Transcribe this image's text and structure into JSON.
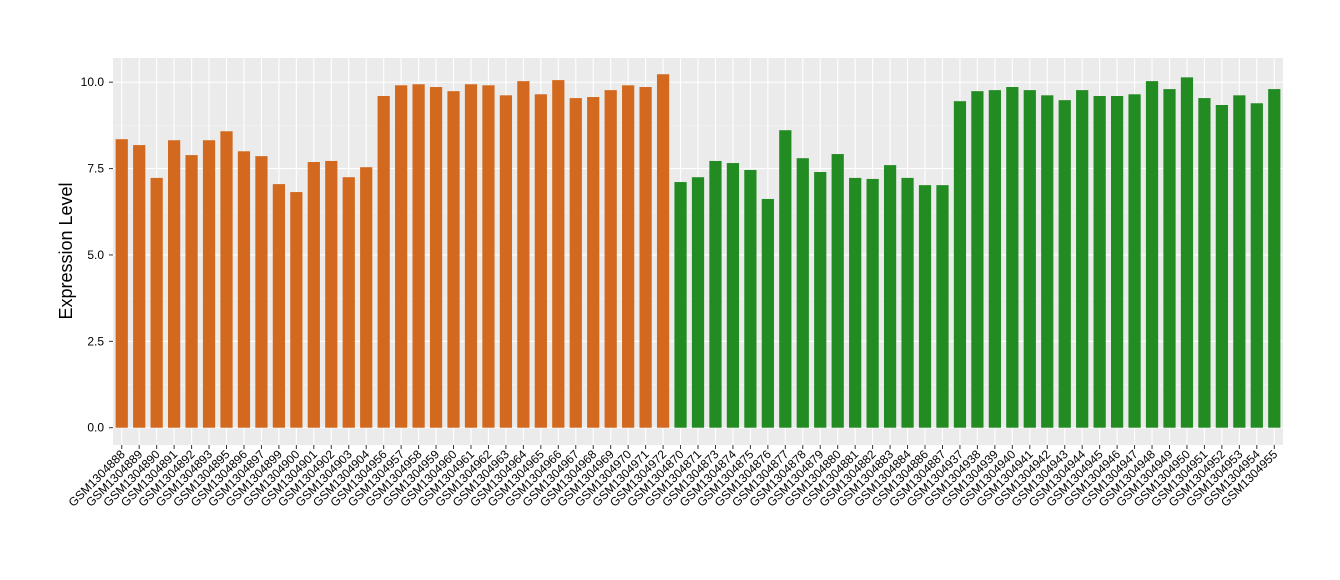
{
  "chart_data": {
    "type": "bar",
    "y_label": "Expression Level",
    "ylim": [
      -0.5,
      10.7
    ],
    "yticks": [
      {
        "value": 0,
        "label": "0.0"
      },
      2.5,
      {
        "value": 5,
        "label": "5.0"
      },
      7.5,
      {
        "value": 10,
        "label": "10.0"
      }
    ],
    "grid": true,
    "groups": [
      {
        "color": "#d2691e",
        "categories": [
          "GSM1304888",
          "GSM1304889",
          "GSM1304890",
          "GSM1304891",
          "GSM1304892",
          "GSM1304893",
          "GSM1304895",
          "GSM1304896",
          "GSM1304897",
          "GSM1304899",
          "GSM1304900",
          "GSM1304901",
          "GSM1304902",
          "GSM1304903",
          "GSM1304904",
          "GSM1304956",
          "GSM1304957",
          "GSM1304958",
          "GSM1304959",
          "GSM1304960",
          "GSM1304961",
          "GSM1304962",
          "GSM1304963",
          "GSM1304964",
          "GSM1304965",
          "GSM1304966",
          "GSM1304967",
          "GSM1304968",
          "GSM1304969",
          "GSM1304970",
          "GSM1304971",
          "GSM1304972"
        ],
        "values": [
          8.35,
          8.18,
          7.23,
          8.32,
          7.89,
          8.32,
          8.58,
          8.0,
          7.86,
          7.05,
          6.82,
          7.69,
          7.72,
          7.25,
          7.54,
          9.6,
          9.91,
          9.94,
          9.86,
          9.74,
          9.94,
          9.91,
          9.62,
          10.03,
          9.65,
          10.06,
          9.54,
          9.57,
          9.77,
          9.91,
          9.86,
          10.23
        ]
      },
      {
        "color": "#228b22",
        "categories": [
          "GSM1304870",
          "GSM1304871",
          "GSM1304873",
          "GSM1304874",
          "GSM1304875",
          "GSM1304876",
          "GSM1304877",
          "GSM1304878",
          "GSM1304879",
          "GSM1304880",
          "GSM1304881",
          "GSM1304882",
          "GSM1304883",
          "GSM1304884",
          "GSM1304886",
          "GSM1304887",
          "GSM1304937",
          "GSM1304938",
          "GSM1304939",
          "GSM1304940",
          "GSM1304941",
          "GSM1304942",
          "GSM1304943",
          "GSM1304944",
          "GSM1304945",
          "GSM1304946",
          "GSM1304947",
          "GSM1304948",
          "GSM1304949",
          "GSM1304950",
          "GSM1304951",
          "GSM1304952",
          "GSM1304953",
          "GSM1304954",
          "GSM1304955"
        ],
        "values": [
          7.11,
          7.25,
          7.72,
          7.66,
          7.46,
          6.62,
          8.61,
          7.8,
          7.4,
          7.92,
          7.23,
          7.2,
          7.6,
          7.23,
          7.02,
          7.02,
          9.45,
          9.74,
          9.77,
          9.86,
          9.77,
          9.62,
          9.48,
          9.77,
          9.6,
          9.6,
          9.65,
          10.03,
          9.8,
          10.14,
          9.54,
          9.34,
          9.62,
          9.39,
          9.8
        ]
      }
    ]
  }
}
